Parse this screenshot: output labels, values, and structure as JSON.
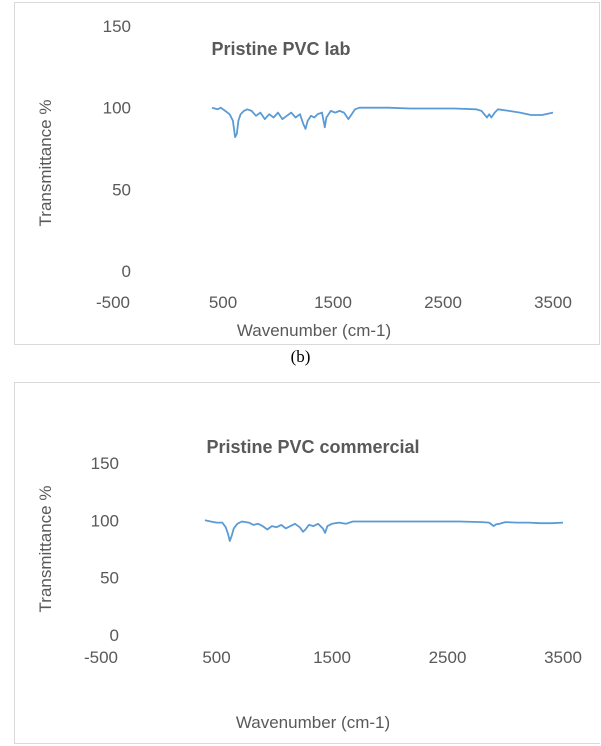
{
  "caption": "(b)",
  "chart_data": [
    {
      "type": "line",
      "title": "Pristine PVC lab",
      "xlabel": "Wavenumber (cm-1)",
      "ylabel": "Transmittance %",
      "xlim": [
        -500,
        3500
      ],
      "ylim": [
        0,
        150
      ],
      "x_ticks": [
        "-500",
        "500",
        "1500",
        "2500",
        "3500"
      ],
      "y_ticks": [
        "0",
        "50",
        "100",
        "150"
      ],
      "grid": false,
      "legend": "none",
      "line_color": "#5b9bd5",
      "series": [
        {
          "x": [
            400,
            450,
            480,
            520,
            560,
            590,
            610,
            625,
            640,
            660,
            690,
            720,
            760,
            800,
            840,
            880,
            920,
            960,
            1000,
            1040,
            1080,
            1120,
            1160,
            1200,
            1230,
            1250,
            1270,
            1300,
            1330,
            1360,
            1400,
            1425,
            1440,
            1460,
            1480,
            1520,
            1560,
            1600,
            1640,
            1670,
            1700,
            1740,
            1800,
            2000,
            2200,
            2400,
            2600,
            2800,
            2850,
            2900,
            2920,
            2940,
            2970,
            3000,
            3100,
            3200,
            3300,
            3400,
            3500
          ],
          "y": [
            100,
            99,
            100,
            98,
            96,
            92,
            82,
            84,
            92,
            96,
            98,
            99,
            98,
            95,
            97,
            93,
            96,
            94,
            97,
            93,
            95,
            97,
            94,
            96,
            90,
            87,
            92,
            95,
            94,
            96,
            97,
            88,
            94,
            96,
            98,
            97,
            98,
            97,
            93,
            96,
            99,
            100,
            100,
            100,
            99.5,
            99.5,
            99.5,
            99,
            98,
            94,
            96,
            94,
            97,
            99,
            98,
            97,
            95.5,
            95.5,
            97
          ]
        }
      ]
    },
    {
      "type": "line",
      "title": "Pristine PVC commercial",
      "xlabel": "Wavenumber (cm-1)",
      "ylabel": "Transmittance %",
      "xlim": [
        -500,
        3500
      ],
      "ylim": [
        0,
        150
      ],
      "x_ticks": [
        "-500",
        "500",
        "1500",
        "2500",
        "3500"
      ],
      "y_ticks": [
        "0",
        "50",
        "100",
        "150"
      ],
      "grid": false,
      "legend": "none",
      "line_color": "#5b9bd5",
      "series": [
        {
          "x": [
            400,
            450,
            500,
            550,
            580,
            600,
            615,
            630,
            650,
            680,
            720,
            780,
            820,
            860,
            900,
            940,
            980,
            1020,
            1060,
            1100,
            1140,
            1180,
            1220,
            1250,
            1270,
            1300,
            1340,
            1380,
            1420,
            1440,
            1460,
            1500,
            1560,
            1620,
            1680,
            1800,
            2000,
            2200,
            2400,
            2600,
            2800,
            2860,
            2900,
            2920,
            2950,
            3000,
            3100,
            3200,
            3300,
            3400,
            3500
          ],
          "y": [
            100,
            99,
            98,
            98,
            94,
            88,
            82,
            86,
            93,
            97,
            99,
            98,
            96,
            97,
            95,
            92,
            95,
            94,
            96,
            93,
            95,
            97,
            94,
            90,
            92,
            96,
            95,
            97,
            93,
            89,
            95,
            97,
            98,
            97,
            99,
            99,
            99,
            99,
            99,
            99,
            98.5,
            98,
            95,
            96.5,
            97,
            98.5,
            98,
            98,
            97.5,
            97.5,
            98
          ]
        }
      ]
    }
  ]
}
